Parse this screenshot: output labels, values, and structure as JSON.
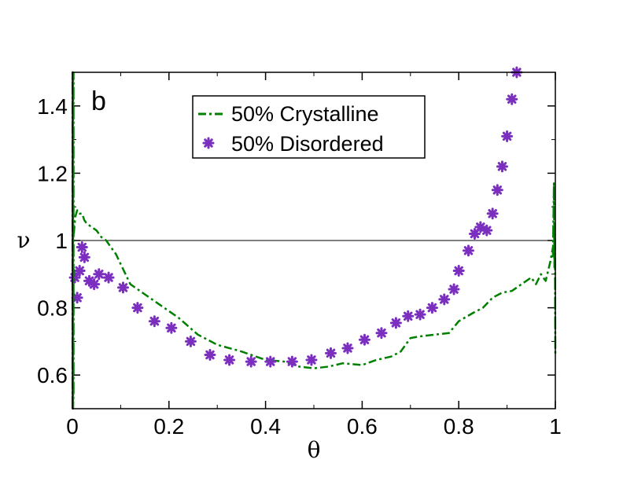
{
  "chart_data": {
    "type": "line",
    "panel_label": "b",
    "xlabel": "θ",
    "ylabel": "ν",
    "xlim": [
      0,
      1
    ],
    "ylim": [
      0.5,
      1.5
    ],
    "x_ticks": [
      0,
      0.2,
      0.4,
      0.6,
      0.8,
      1
    ],
    "x_tick_labels": [
      "0",
      "0.2",
      "0.4",
      "0.6",
      "0.8",
      "1"
    ],
    "y_ticks": [
      0.6,
      0.8,
      1.0,
      1.2,
      1.4
    ],
    "y_tick_labels": [
      "0.6",
      "0.8",
      "1",
      "1.2",
      "1.4"
    ],
    "reference_line_y": 1.0,
    "legend": [
      {
        "name": "50% Crystalline",
        "style": "dash-dot line"
      },
      {
        "name": "50% Disordered",
        "style": "asterisk markers"
      }
    ],
    "colors": {
      "crystalline": "#008000",
      "disordered": "#7b2fbe",
      "axes": "#000000"
    },
    "series": [
      {
        "name": "50% Crystalline",
        "kind": "line",
        "x": [
          0.003,
          0.006,
          0.01,
          0.015,
          0.02,
          0.025,
          0.03,
          0.04,
          0.05,
          0.06,
          0.07,
          0.08,
          0.09,
          0.1,
          0.12,
          0.15,
          0.18,
          0.22,
          0.26,
          0.3,
          0.35,
          0.4,
          0.44,
          0.47,
          0.5,
          0.53,
          0.56,
          0.6,
          0.63,
          0.66,
          0.68,
          0.7,
          0.72,
          0.75,
          0.78,
          0.8,
          0.83,
          0.85,
          0.87,
          0.89,
          0.91,
          0.93,
          0.95,
          0.96,
          0.97,
          0.98,
          0.99,
          0.995
        ],
        "y": [
          1.02,
          1.07,
          1.09,
          1.08,
          1.08,
          1.06,
          1.05,
          1.04,
          1.03,
          1.01,
          1.0,
          0.98,
          0.96,
          0.93,
          0.87,
          0.84,
          0.81,
          0.77,
          0.72,
          0.69,
          0.67,
          0.645,
          0.64,
          0.625,
          0.62,
          0.625,
          0.635,
          0.63,
          0.645,
          0.655,
          0.67,
          0.71,
          0.715,
          0.72,
          0.725,
          0.76,
          0.785,
          0.8,
          0.83,
          0.845,
          0.85,
          0.87,
          0.89,
          0.87,
          0.9,
          0.88,
          0.94,
          0.98
        ]
      },
      {
        "name": "50% Disordered",
        "kind": "scatter",
        "x": [
          0.005,
          0.01,
          0.015,
          0.02,
          0.025,
          0.035,
          0.045,
          0.055,
          0.075,
          0.105,
          0.135,
          0.17,
          0.205,
          0.245,
          0.285,
          0.325,
          0.37,
          0.41,
          0.455,
          0.495,
          0.535,
          0.57,
          0.605,
          0.64,
          0.67,
          0.695,
          0.72,
          0.745,
          0.77,
          0.79,
          0.8,
          0.82,
          0.833,
          0.845,
          0.858,
          0.87,
          0.88,
          0.89,
          0.9,
          0.91,
          0.92
        ],
        "y": [
          0.89,
          0.83,
          0.91,
          0.98,
          0.95,
          0.88,
          0.87,
          0.9,
          0.89,
          0.86,
          0.8,
          0.76,
          0.74,
          0.7,
          0.66,
          0.645,
          0.64,
          0.64,
          0.64,
          0.645,
          0.665,
          0.68,
          0.705,
          0.725,
          0.755,
          0.775,
          0.78,
          0.8,
          0.825,
          0.855,
          0.91,
          0.97,
          1.02,
          1.04,
          1.03,
          1.08,
          1.15,
          1.22,
          1.31,
          1.42,
          1.5
        ]
      },
      {
        "name": "Left edge spike",
        "kind": "line",
        "x": [
          0.0005,
          0.0005,
          0.0015,
          0.0015,
          0.0025,
          0.0025
        ],
        "y": [
          0.5,
          1.5,
          1.5,
          0.5,
          0.55,
          1.5
        ]
      },
      {
        "name": "Right edge spike",
        "kind": "line",
        "x": [
          0.995,
          0.997,
          0.998,
          0.999,
          1.0
        ],
        "y": [
          0.95,
          1.17,
          0.92,
          1.05,
          0.66
        ]
      }
    ]
  }
}
